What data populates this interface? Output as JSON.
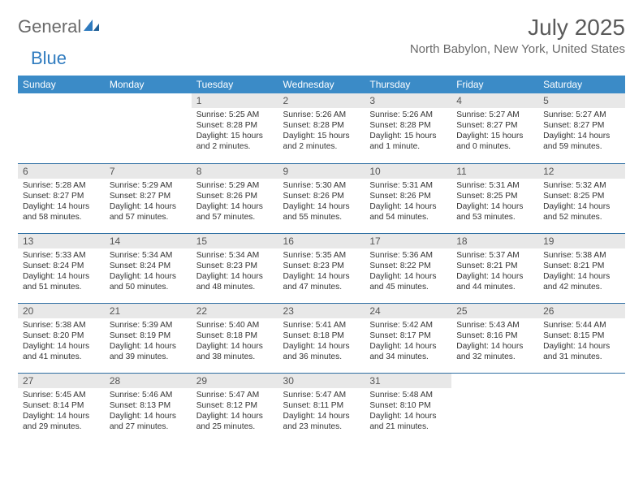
{
  "brand": {
    "part1": "General",
    "part2": "Blue"
  },
  "title": "July 2025",
  "location": "North Babylon, New York, United States",
  "colors": {
    "header_bg": "#3b8bc7",
    "header_text": "#ffffff",
    "daynum_bg": "#e8e8e8",
    "row_border": "#2f6fa3",
    "text": "#333333",
    "logo_blue": "#2f7bbf"
  },
  "day_headers": [
    "Sunday",
    "Monday",
    "Tuesday",
    "Wednesday",
    "Thursday",
    "Friday",
    "Saturday"
  ],
  "weeks": [
    [
      null,
      null,
      {
        "n": "1",
        "sunrise": "Sunrise: 5:25 AM",
        "sunset": "Sunset: 8:28 PM",
        "daylight": "Daylight: 15 hours and 2 minutes."
      },
      {
        "n": "2",
        "sunrise": "Sunrise: 5:26 AM",
        "sunset": "Sunset: 8:28 PM",
        "daylight": "Daylight: 15 hours and 2 minutes."
      },
      {
        "n": "3",
        "sunrise": "Sunrise: 5:26 AM",
        "sunset": "Sunset: 8:28 PM",
        "daylight": "Daylight: 15 hours and 1 minute."
      },
      {
        "n": "4",
        "sunrise": "Sunrise: 5:27 AM",
        "sunset": "Sunset: 8:27 PM",
        "daylight": "Daylight: 15 hours and 0 minutes."
      },
      {
        "n": "5",
        "sunrise": "Sunrise: 5:27 AM",
        "sunset": "Sunset: 8:27 PM",
        "daylight": "Daylight: 14 hours and 59 minutes."
      }
    ],
    [
      {
        "n": "6",
        "sunrise": "Sunrise: 5:28 AM",
        "sunset": "Sunset: 8:27 PM",
        "daylight": "Daylight: 14 hours and 58 minutes."
      },
      {
        "n": "7",
        "sunrise": "Sunrise: 5:29 AM",
        "sunset": "Sunset: 8:27 PM",
        "daylight": "Daylight: 14 hours and 57 minutes."
      },
      {
        "n": "8",
        "sunrise": "Sunrise: 5:29 AM",
        "sunset": "Sunset: 8:26 PM",
        "daylight": "Daylight: 14 hours and 57 minutes."
      },
      {
        "n": "9",
        "sunrise": "Sunrise: 5:30 AM",
        "sunset": "Sunset: 8:26 PM",
        "daylight": "Daylight: 14 hours and 55 minutes."
      },
      {
        "n": "10",
        "sunrise": "Sunrise: 5:31 AM",
        "sunset": "Sunset: 8:26 PM",
        "daylight": "Daylight: 14 hours and 54 minutes."
      },
      {
        "n": "11",
        "sunrise": "Sunrise: 5:31 AM",
        "sunset": "Sunset: 8:25 PM",
        "daylight": "Daylight: 14 hours and 53 minutes."
      },
      {
        "n": "12",
        "sunrise": "Sunrise: 5:32 AM",
        "sunset": "Sunset: 8:25 PM",
        "daylight": "Daylight: 14 hours and 52 minutes."
      }
    ],
    [
      {
        "n": "13",
        "sunrise": "Sunrise: 5:33 AM",
        "sunset": "Sunset: 8:24 PM",
        "daylight": "Daylight: 14 hours and 51 minutes."
      },
      {
        "n": "14",
        "sunrise": "Sunrise: 5:34 AM",
        "sunset": "Sunset: 8:24 PM",
        "daylight": "Daylight: 14 hours and 50 minutes."
      },
      {
        "n": "15",
        "sunrise": "Sunrise: 5:34 AM",
        "sunset": "Sunset: 8:23 PM",
        "daylight": "Daylight: 14 hours and 48 minutes."
      },
      {
        "n": "16",
        "sunrise": "Sunrise: 5:35 AM",
        "sunset": "Sunset: 8:23 PM",
        "daylight": "Daylight: 14 hours and 47 minutes."
      },
      {
        "n": "17",
        "sunrise": "Sunrise: 5:36 AM",
        "sunset": "Sunset: 8:22 PM",
        "daylight": "Daylight: 14 hours and 45 minutes."
      },
      {
        "n": "18",
        "sunrise": "Sunrise: 5:37 AM",
        "sunset": "Sunset: 8:21 PM",
        "daylight": "Daylight: 14 hours and 44 minutes."
      },
      {
        "n": "19",
        "sunrise": "Sunrise: 5:38 AM",
        "sunset": "Sunset: 8:21 PM",
        "daylight": "Daylight: 14 hours and 42 minutes."
      }
    ],
    [
      {
        "n": "20",
        "sunrise": "Sunrise: 5:38 AM",
        "sunset": "Sunset: 8:20 PM",
        "daylight": "Daylight: 14 hours and 41 minutes."
      },
      {
        "n": "21",
        "sunrise": "Sunrise: 5:39 AM",
        "sunset": "Sunset: 8:19 PM",
        "daylight": "Daylight: 14 hours and 39 minutes."
      },
      {
        "n": "22",
        "sunrise": "Sunrise: 5:40 AM",
        "sunset": "Sunset: 8:18 PM",
        "daylight": "Daylight: 14 hours and 38 minutes."
      },
      {
        "n": "23",
        "sunrise": "Sunrise: 5:41 AM",
        "sunset": "Sunset: 8:18 PM",
        "daylight": "Daylight: 14 hours and 36 minutes."
      },
      {
        "n": "24",
        "sunrise": "Sunrise: 5:42 AM",
        "sunset": "Sunset: 8:17 PM",
        "daylight": "Daylight: 14 hours and 34 minutes."
      },
      {
        "n": "25",
        "sunrise": "Sunrise: 5:43 AM",
        "sunset": "Sunset: 8:16 PM",
        "daylight": "Daylight: 14 hours and 32 minutes."
      },
      {
        "n": "26",
        "sunrise": "Sunrise: 5:44 AM",
        "sunset": "Sunset: 8:15 PM",
        "daylight": "Daylight: 14 hours and 31 minutes."
      }
    ],
    [
      {
        "n": "27",
        "sunrise": "Sunrise: 5:45 AM",
        "sunset": "Sunset: 8:14 PM",
        "daylight": "Daylight: 14 hours and 29 minutes."
      },
      {
        "n": "28",
        "sunrise": "Sunrise: 5:46 AM",
        "sunset": "Sunset: 8:13 PM",
        "daylight": "Daylight: 14 hours and 27 minutes."
      },
      {
        "n": "29",
        "sunrise": "Sunrise: 5:47 AM",
        "sunset": "Sunset: 8:12 PM",
        "daylight": "Daylight: 14 hours and 25 minutes."
      },
      {
        "n": "30",
        "sunrise": "Sunrise: 5:47 AM",
        "sunset": "Sunset: 8:11 PM",
        "daylight": "Daylight: 14 hours and 23 minutes."
      },
      {
        "n": "31",
        "sunrise": "Sunrise: 5:48 AM",
        "sunset": "Sunset: 8:10 PM",
        "daylight": "Daylight: 14 hours and 21 minutes."
      },
      null,
      null
    ]
  ]
}
